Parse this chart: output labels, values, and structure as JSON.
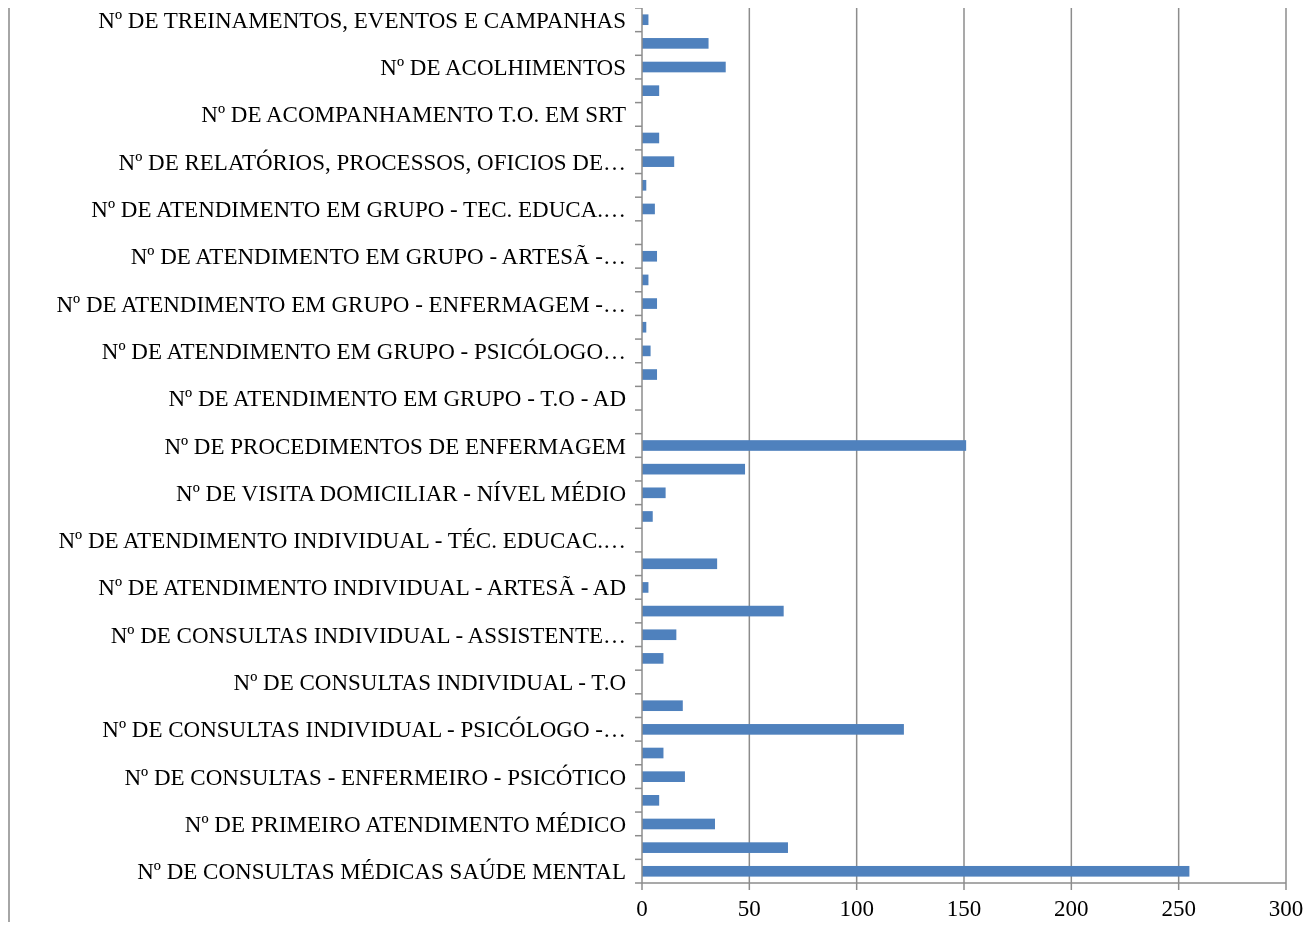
{
  "chart_data": {
    "type": "bar",
    "orientation": "horizontal",
    "color": "#4f81bd",
    "grid": "x",
    "categories": [
      "Nº DE TREINAMENTOS, EVENTOS E CAMPANHAS",
      null,
      "Nº DE ACOLHIMENTOS",
      null,
      "Nº DE ACOMPANHAMENTO T.O. EM SRT",
      null,
      "Nº DE RELATÓRIOS, PROCESSOS, OFICIOS DE…",
      null,
      "Nº DE ATENDIMENTO EM GRUPO - TEC. EDUCA.…",
      null,
      "Nº DE ATENDIMENTO EM GRUPO - ARTESÃ -…",
      null,
      "Nº DE ATENDIMENTO EM GRUPO - ENFERMAGEM -…",
      null,
      "Nº DE ATENDIMENTO EM GRUPO - PSICÓLOGO…",
      null,
      "Nº DE ATENDIMENTO EM GRUPO - T.O - AD",
      null,
      "Nº DE PROCEDIMENTOS DE ENFERMAGEM",
      null,
      "Nº DE VISITA DOMICILIAR  - NÍVEL MÉDIO",
      null,
      "Nº DE ATENDIMENTO INDIVIDUAL - TÉC. EDUCAC.…",
      null,
      "Nº DE ATENDIMENTO INDIVIDUAL - ARTESÃ - AD",
      null,
      "Nº DE CONSULTAS INDIVIDUAL - ASSISTENTE…",
      null,
      "Nº DE CONSULTAS INDIVIDUAL - T.O",
      null,
      "Nº DE CONSULTAS INDIVIDUAL - PSICÓLOGO -…",
      null,
      "Nº DE CONSULTAS - ENFERMEIRO - PSICÓTICO",
      null,
      "Nº DE PRIMEIRO ATENDIMENTO MÉDICO",
      null,
      "Nº DE CONSULTAS MÉDICAS SAÚDE MENTAL"
    ],
    "values": [
      3,
      31,
      39,
      8,
      0,
      8,
      15,
      2,
      6,
      0,
      7,
      3,
      7,
      2,
      4,
      7,
      0,
      0,
      151,
      48,
      11,
      5,
      0,
      35,
      3,
      66,
      16,
      10,
      0,
      19,
      122,
      10,
      20,
      8,
      34,
      68,
      255
    ],
    "xlim": [
      0,
      300
    ],
    "xticks": [
      0,
      50,
      100,
      150,
      200,
      250,
      300
    ]
  }
}
